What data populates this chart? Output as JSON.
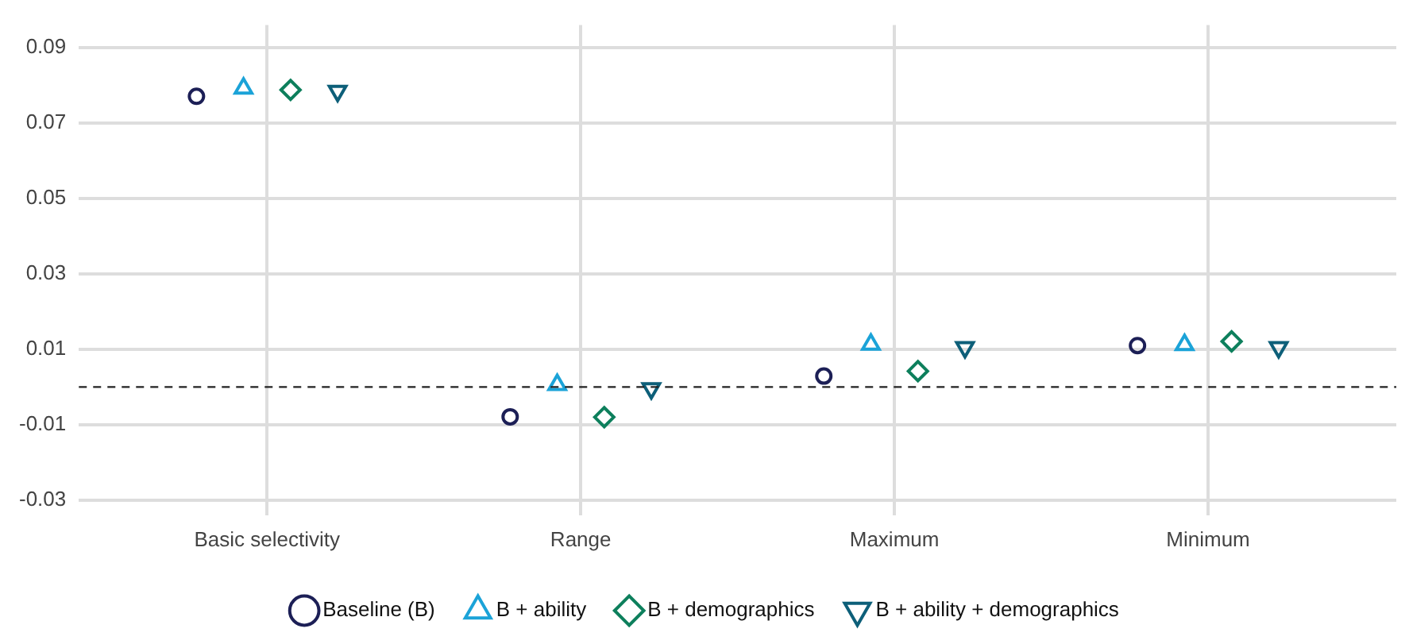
{
  "chart_data": {
    "type": "scatter",
    "categories": [
      "Basic selectivity",
      "Range",
      "Maximum",
      "Minimum"
    ],
    "series": [
      {
        "name": "Baseline (B)",
        "color": "#1c1f56",
        "marker": "circle",
        "values": [
          0.0771,
          -0.0079,
          0.0029,
          0.011
        ]
      },
      {
        "name": "B + ability",
        "color": "#1ba3d8",
        "marker": "triangle",
        "values": [
          0.0792,
          0.0006,
          0.0113,
          0.0112
        ]
      },
      {
        "name": "B + demographics",
        "color": "#0d7f5c",
        "marker": "diamond",
        "values": [
          0.0788,
          -0.008,
          0.0042,
          0.0121
        ]
      },
      {
        "name": "B + ability + demographics",
        "color": "#0d5f79",
        "marker": "triangle-down",
        "values": [
          0.0785,
          -0.0004,
          0.0105,
          0.0105
        ]
      }
    ],
    "ylim": [
      -0.034,
      0.096
    ],
    "yticks": [
      -0.03,
      -0.01,
      0.01,
      0.03,
      0.05,
      0.07,
      0.09
    ],
    "ref_lines": [
      {
        "axis": "y",
        "value": 0,
        "color": "#222222",
        "line_style": "dashed"
      }
    ],
    "grid": true,
    "legend": "bottom"
  }
}
